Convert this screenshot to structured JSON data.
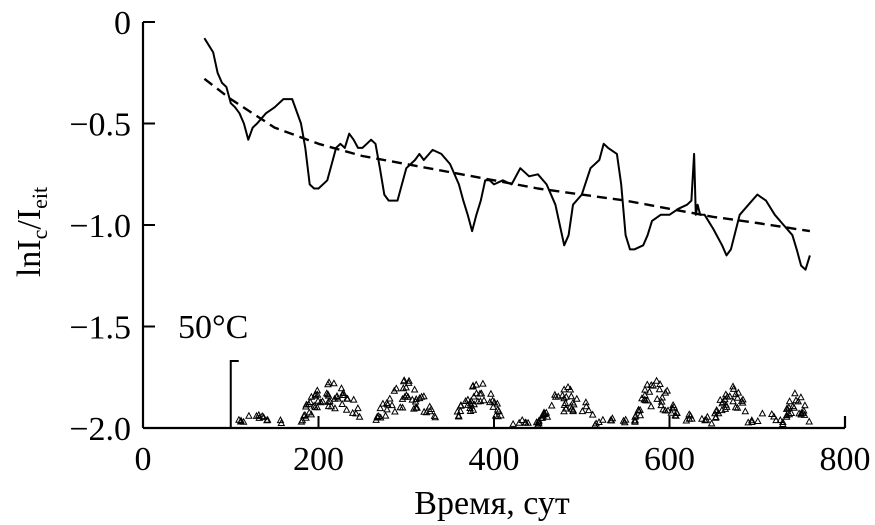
{
  "chart_data": {
    "type": "line",
    "xlabel": "Время, сут",
    "ylabel": {
      "text": "lnI",
      "sub1": "c",
      "mid": "/I",
      "sub2": "eit"
    },
    "xlim": [
      0,
      800
    ],
    "ylim": [
      -2.0,
      0
    ],
    "xticks": [
      0,
      200,
      400,
      600,
      800
    ],
    "xtick_labels": [
      "0",
      "200",
      "400",
      "600",
      "800"
    ],
    "yticks": [
      0,
      -0.5,
      -1.0,
      -1.5,
      -2.0
    ],
    "ytick_labels": [
      "0",
      "−0.5",
      "−1.0",
      "−1.5",
      "−2.0"
    ],
    "grid": false,
    "annotation": "50°C",
    "series": [
      {
        "style": "solid",
        "x": [
          70,
          80,
          85,
          90,
          95,
          100,
          105,
          110,
          115,
          120,
          125,
          130,
          140,
          150,
          160,
          170,
          180,
          185,
          190,
          195,
          200,
          210,
          215,
          220,
          225,
          230,
          235,
          240,
          245,
          250,
          255,
          260,
          265,
          270,
          275,
          280,
          285,
          290,
          295,
          300,
          310,
          315,
          320,
          330,
          340,
          350,
          360,
          365,
          370,
          375,
          380,
          385,
          390,
          395,
          400,
          410,
          420,
          430,
          440,
          450,
          460,
          470,
          475,
          480,
          485,
          490,
          500,
          510,
          520,
          525,
          530,
          540,
          545,
          550,
          555,
          560,
          570,
          575,
          580,
          590,
          600,
          610,
          620,
          625,
          628,
          630,
          632,
          635,
          640,
          650,
          660,
          665,
          670,
          680,
          690,
          700,
          710,
          720,
          730,
          740,
          745,
          750,
          755,
          760
        ],
        "y": [
          -0.08,
          -0.15,
          -0.25,
          -0.3,
          -0.32,
          -0.4,
          -0.42,
          -0.45,
          -0.5,
          -0.58,
          -0.52,
          -0.5,
          -0.45,
          -0.42,
          -0.38,
          -0.38,
          -0.5,
          -0.62,
          -0.8,
          -0.82,
          -0.82,
          -0.78,
          -0.7,
          -0.62,
          -0.6,
          -0.62,
          -0.55,
          -0.58,
          -0.62,
          -0.62,
          -0.6,
          -0.58,
          -0.6,
          -0.72,
          -0.85,
          -0.88,
          -0.88,
          -0.88,
          -0.8,
          -0.72,
          -0.68,
          -0.65,
          -0.68,
          -0.63,
          -0.65,
          -0.7,
          -0.8,
          -0.88,
          -0.95,
          -1.03,
          -0.95,
          -0.88,
          -0.78,
          -0.78,
          -0.8,
          -0.78,
          -0.8,
          -0.72,
          -0.76,
          -0.75,
          -0.8,
          -0.9,
          -1.0,
          -1.1,
          -1.05,
          -0.9,
          -0.85,
          -0.72,
          -0.68,
          -0.6,
          -0.62,
          -0.65,
          -0.8,
          -1.05,
          -1.12,
          -1.12,
          -1.1,
          -1.05,
          -0.98,
          -0.95,
          -0.95,
          -0.92,
          -0.9,
          -0.88,
          -0.65,
          -0.95,
          -0.9,
          -0.95,
          -0.95,
          -1.02,
          -1.1,
          -1.15,
          -1.12,
          -0.95,
          -0.9,
          -0.85,
          -0.88,
          -0.95,
          -1.0,
          -1.05,
          -1.12,
          -1.2,
          -1.22,
          -1.15
        ]
      },
      {
        "style": "dashed",
        "x": [
          70,
          100,
          150,
          200,
          250,
          300,
          350,
          400,
          450,
          500,
          550,
          600,
          650,
          700,
          760
        ],
        "y": [
          -0.28,
          -0.38,
          -0.52,
          -0.6,
          -0.66,
          -0.7,
          -0.74,
          -0.78,
          -0.82,
          -0.85,
          -0.88,
          -0.92,
          -0.96,
          -0.99,
          -1.03
        ]
      }
    ],
    "temperature_marker": {
      "x": 100,
      "y_top": -1.67,
      "y_bottom": -2.0
    },
    "temperature_clusters": [
      {
        "x_start": 105,
        "x_end": 160,
        "y_peak": -1.93,
        "count": 14
      },
      {
        "x_start": 180,
        "x_end": 250,
        "y_peak": -1.76,
        "count": 50
      },
      {
        "x_start": 265,
        "x_end": 335,
        "y_peak": -1.77,
        "count": 45
      },
      {
        "x_start": 355,
        "x_end": 410,
        "y_peak": -1.77,
        "count": 40
      },
      {
        "x_start": 420,
        "x_end": 455,
        "y_peak": -1.97,
        "count": 8
      },
      {
        "x_start": 450,
        "x_end": 515,
        "y_peak": -1.8,
        "count": 40
      },
      {
        "x_start": 515,
        "x_end": 560,
        "y_peak": -1.95,
        "count": 10
      },
      {
        "x_start": 560,
        "x_end": 610,
        "y_peak": -1.74,
        "count": 40
      },
      {
        "x_start": 610,
        "x_end": 650,
        "y_peak": -1.93,
        "count": 10
      },
      {
        "x_start": 650,
        "x_end": 690,
        "y_peak": -1.77,
        "count": 30
      },
      {
        "x_start": 690,
        "x_end": 730,
        "y_peak": -1.93,
        "count": 10
      },
      {
        "x_start": 730,
        "x_end": 760,
        "y_peak": -1.82,
        "count": 22
      }
    ]
  }
}
